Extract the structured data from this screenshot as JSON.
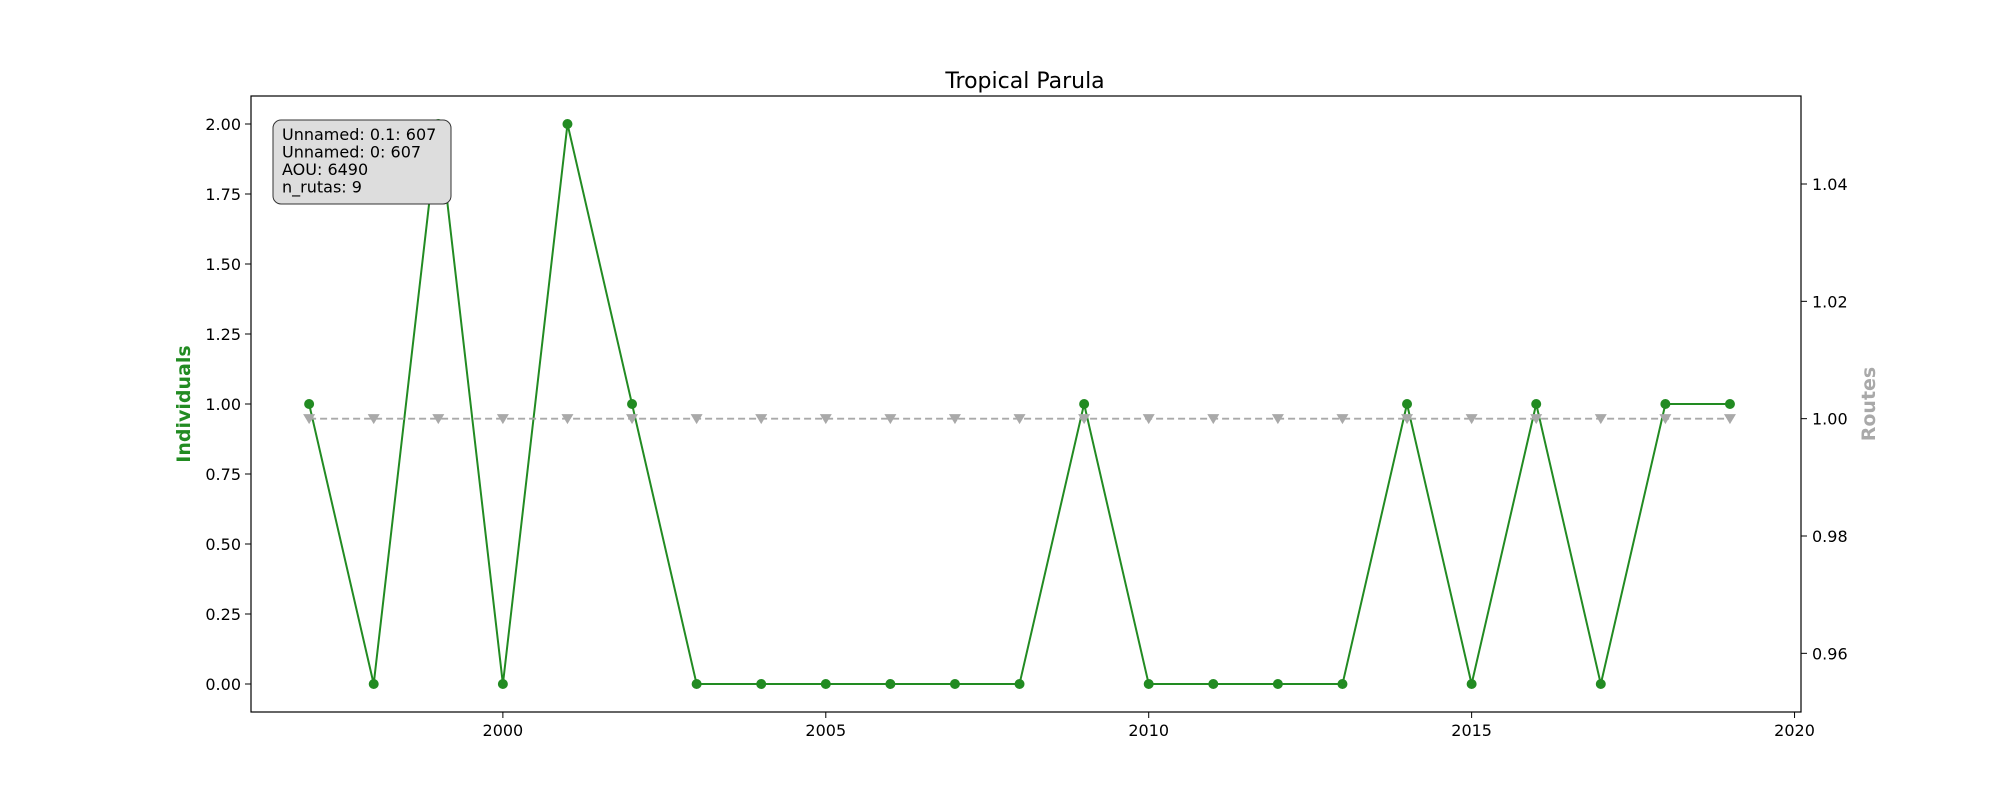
{
  "chart_data": {
    "type": "line",
    "title": "Tropical Parula",
    "x": [
      1997,
      1998,
      1999,
      2000,
      2001,
      2002,
      2003,
      2004,
      2005,
      2006,
      2007,
      2008,
      2009,
      2010,
      2011,
      2012,
      2013,
      2014,
      2015,
      2016,
      2017,
      2018,
      2019
    ],
    "xlim": [
      1996.1,
      2020.1
    ],
    "xticks": [
      2000,
      2005,
      2010,
      2015,
      2020
    ],
    "left_axis": {
      "label": "Individuals",
      "ylim": [
        -0.1,
        2.1
      ],
      "ticks": [
        "0.00",
        "0.25",
        "0.50",
        "0.75",
        "1.00",
        "1.25",
        "1.50",
        "1.75",
        "2.00"
      ],
      "tick_values": [
        0,
        0.25,
        0.5,
        0.75,
        1.0,
        1.25,
        1.5,
        1.75,
        2.0
      ]
    },
    "right_axis": {
      "label": "Routes",
      "ylim": [
        0.95,
        1.055
      ],
      "ticks": [
        "0.96",
        "0.98",
        "1.00",
        "1.02",
        "1.04"
      ],
      "tick_values": [
        0.96,
        0.98,
        1.0,
        1.02,
        1.04
      ]
    },
    "series": [
      {
        "name": "Individuals",
        "axis": "left",
        "color": "#228B22",
        "marker": "circle",
        "linestyle": "solid",
        "values": [
          1,
          0,
          2,
          0,
          2,
          1,
          0,
          0,
          0,
          0,
          0,
          0,
          1,
          0,
          0,
          0,
          0,
          1,
          0,
          1,
          0,
          1,
          1
        ]
      },
      {
        "name": "Routes",
        "axis": "right",
        "color": "#A9A9A9",
        "marker": "triangle-down",
        "linestyle": "dashed",
        "values": [
          1,
          1,
          1,
          1,
          1,
          1,
          1,
          1,
          1,
          1,
          1,
          1,
          1,
          1,
          1,
          1,
          1,
          1,
          1,
          1,
          1,
          1,
          1
        ]
      }
    ],
    "info_box": {
      "lines": [
        "Unnamed: 0.1: 607",
        "Unnamed: 0: 607",
        "AOU: 6490",
        "n_rutas: 9"
      ]
    },
    "grid": false
  }
}
